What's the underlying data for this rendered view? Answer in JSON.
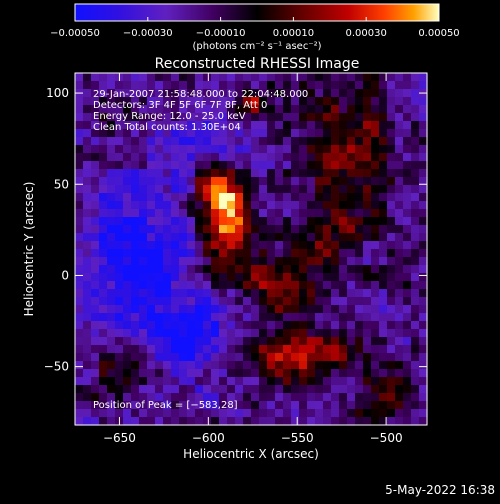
{
  "chart_data": {
    "type": "heatmap",
    "title": "Reconstructed RHESSI Image",
    "xlabel": "Heliocentric X (arcsec)",
    "ylabel": "Heliocentric Y (arcsec)",
    "xlim": [
      -675,
      -477
    ],
    "ylim": [
      -82,
      111
    ],
    "xticks": [
      -650,
      -600,
      -550,
      -500
    ],
    "yticks": [
      -50,
      0,
      50,
      100
    ],
    "xtick_labels": [
      "−650",
      "−600",
      "−550",
      "−500"
    ],
    "ytick_labels": [
      "−50",
      "0",
      "50",
      "100"
    ],
    "colorbar": {
      "range": [
        -0.0005,
        0.0005
      ],
      "ticks": [
        -0.0005,
        -0.0003,
        -0.0001,
        0.0001,
        0.0003,
        0.0005
      ],
      "tick_labels": [
        "−0.00050",
        "−0.00030",
        "−0.00010",
        "0.00010",
        "0.00030",
        "0.00050"
      ],
      "unit_label": "(photons cm⁻² s⁻¹ asec⁻²)",
      "colors": [
        "#1010ff",
        "#6020c0",
        "#400060",
        "#000000",
        "#600000",
        "#c00000",
        "#ff4000",
        "#ffa000",
        "#ffffc0"
      ]
    },
    "annotations": [
      "29-Jan-2007 21:58:48.000 to 22:04:48.000",
      "Detectors: 3F 4F 5F 6F 7F 8F, Att 0",
      "Energy Range: 12.0 - 25.0 keV",
      "Clean    Total counts: 1.30E+04",
      "Position of Peak = [−583,28]"
    ],
    "peak": [
      -583,
      28
    ],
    "sources": [
      {
        "x": -590,
        "y": 30,
        "amp": 0.00055,
        "sx": 10,
        "sy": 18
      },
      {
        "x": -595,
        "y": 48,
        "amp": 0.00035,
        "sx": 8,
        "sy": 8
      },
      {
        "x": -560,
        "y": -5,
        "amp": 0.0003,
        "sx": 14,
        "sy": 14
      },
      {
        "x": -548,
        "y": -45,
        "amp": 0.0004,
        "sx": 22,
        "sy": 10
      },
      {
        "x": -575,
        "y": 95,
        "amp": 0.00045,
        "sx": 6,
        "sy": 5
      },
      {
        "x": -520,
        "y": 70,
        "amp": 0.0003,
        "sx": 18,
        "sy": 26
      },
      {
        "x": -530,
        "y": 20,
        "amp": 0.0002,
        "sx": 14,
        "sy": 14
      },
      {
        "x": -650,
        "y": -50,
        "amp": 0.00018,
        "sx": 16,
        "sy": 12
      },
      {
        "x": -500,
        "y": -70,
        "amp": 0.0002,
        "sx": 12,
        "sy": 10
      },
      {
        "x": -660,
        "y": 85,
        "amp": 0.00015,
        "sx": 8,
        "sy": 8
      }
    ],
    "negative_regions": [
      {
        "x": -640,
        "y": 10,
        "amp": 0.0003,
        "sx": 22,
        "sy": 30
      },
      {
        "x": -610,
        "y": -35,
        "amp": 0.00025,
        "sx": 18,
        "sy": 16
      },
      {
        "x": -600,
        "y": 75,
        "amp": 0.00015,
        "sx": 14,
        "sy": 12
      }
    ]
  },
  "footer": {
    "timestamp": "5-May-2022 16:38"
  }
}
